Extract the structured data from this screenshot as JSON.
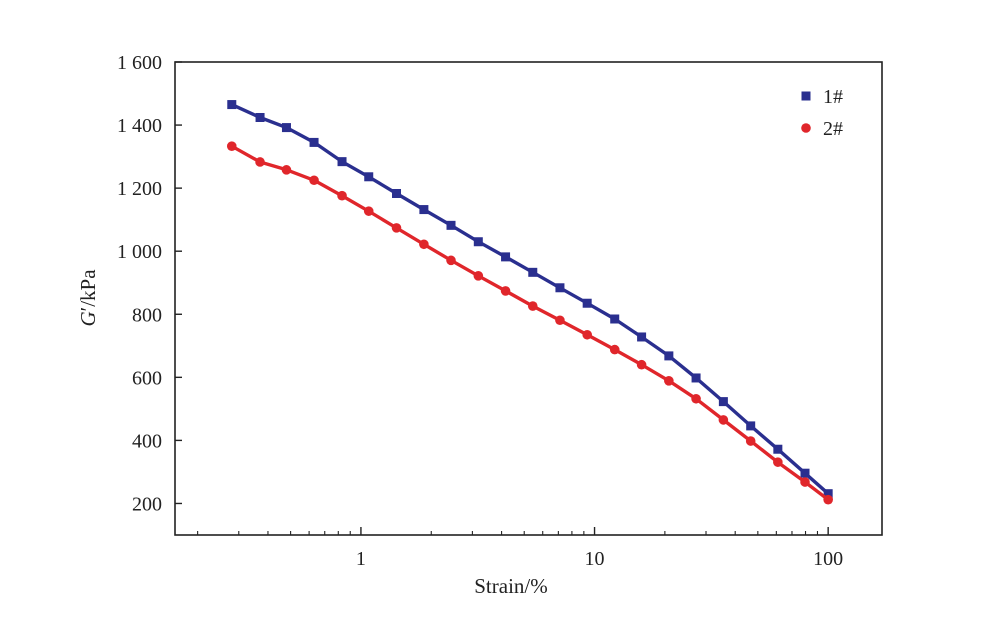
{
  "chart_data": {
    "type": "line",
    "xlabel": "Strain/%",
    "ylabel_italic": "G",
    "ylabel_rest": "′/kPa",
    "xscale": "log",
    "xlim": [
      0.16,
      170
    ],
    "ylim": [
      100,
      1600
    ],
    "x_ticks": [
      1,
      10,
      100
    ],
    "x_tick_labels": [
      "1",
      "10",
      "100"
    ],
    "y_ticks": [
      200,
      400,
      600,
      800,
      1000,
      1200,
      1400,
      1600
    ],
    "y_tick_labels": [
      "200",
      "400",
      "600",
      "800",
      "1 000",
      "1 200",
      "1 400",
      "1 600"
    ],
    "grid": false,
    "legend_position": "top-right",
    "series": [
      {
        "name": "1#",
        "color": "#2a2f8f",
        "marker": "square",
        "x": [
          0.28,
          0.37,
          0.48,
          0.63,
          0.83,
          1.08,
          1.42,
          1.86,
          2.43,
          3.18,
          4.16,
          5.44,
          7.11,
          9.3,
          12.2,
          15.9,
          20.8,
          27.2,
          35.6,
          46.6,
          60.9,
          79.6,
          100
        ],
        "y": [
          1465,
          1424,
          1392,
          1345,
          1284,
          1236,
          1183,
          1132,
          1082,
          1030,
          982,
          933,
          884,
          835,
          785,
          728,
          668,
          598,
          523,
          446,
          372,
          296,
          231
        ]
      },
      {
        "name": "2#",
        "color": "#e0262b",
        "marker": "circle",
        "x": [
          0.28,
          0.37,
          0.48,
          0.63,
          0.83,
          1.08,
          1.42,
          1.86,
          2.43,
          3.18,
          4.16,
          5.44,
          7.11,
          9.3,
          12.2,
          15.9,
          20.8,
          27.2,
          35.6,
          46.6,
          60.9,
          79.6,
          100
        ],
        "y": [
          1333,
          1283,
          1258,
          1225,
          1176,
          1127,
          1074,
          1022,
          971,
          922,
          874,
          826,
          781,
          735,
          688,
          640,
          589,
          532,
          465,
          398,
          331,
          268,
          212
        ]
      }
    ]
  }
}
